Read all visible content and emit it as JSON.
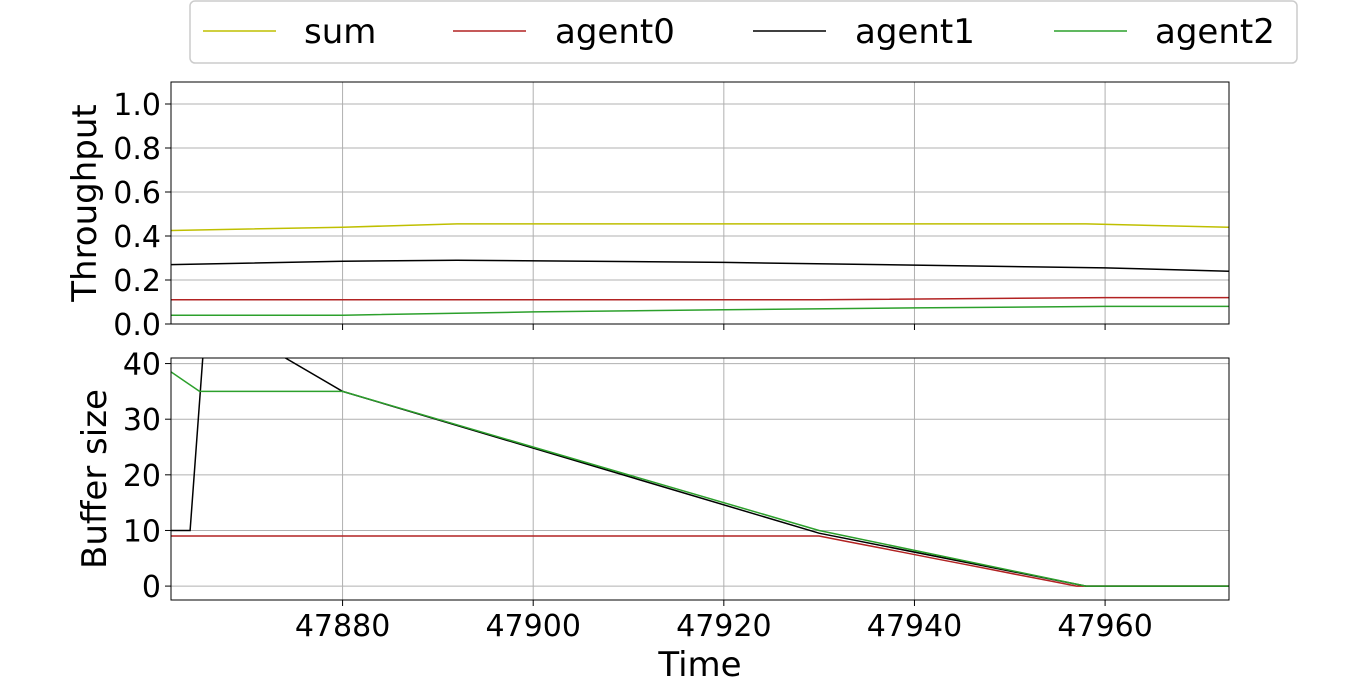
{
  "chart_data": [
    {
      "type": "line",
      "ylabel": "Throughput",
      "xlim": [
        47862,
        47973
      ],
      "ylim": [
        0.0,
        1.1
      ],
      "yticks": [
        0.0,
        0.2,
        0.4,
        0.6,
        0.8,
        1.0
      ],
      "ytick_labels": [
        "0.0",
        "0.2",
        "0.4",
        "0.6",
        "0.8",
        "1.0"
      ],
      "xticks": [
        47880,
        47900,
        47920,
        47940,
        47960
      ],
      "grid": true,
      "series": [
        {
          "name": "sum",
          "color": "#bfbf00",
          "x": [
            47862,
            47880,
            47892,
            47958,
            47973
          ],
          "y": [
            0.425,
            0.44,
            0.455,
            0.455,
            0.44
          ]
        },
        {
          "name": "agent0",
          "color": "#b22222",
          "x": [
            47862,
            47930,
            47960,
            47973
          ],
          "y": [
            0.11,
            0.11,
            0.12,
            0.12
          ]
        },
        {
          "name": "agent1",
          "color": "#000000",
          "x": [
            47862,
            47880,
            47892,
            47920,
            47960,
            47973
          ],
          "y": [
            0.27,
            0.285,
            0.29,
            0.28,
            0.255,
            0.24
          ]
        },
        {
          "name": "agent2",
          "color": "#2ca02c",
          "x": [
            47862,
            47880,
            47900,
            47920,
            47940,
            47960,
            47973
          ],
          "y": [
            0.04,
            0.04,
            0.055,
            0.065,
            0.073,
            0.08,
            0.08
          ]
        }
      ]
    },
    {
      "type": "line",
      "ylabel": "Buffer size",
      "xlabel": "Time",
      "xlim": [
        47862,
        47973
      ],
      "ylim": [
        -2.5,
        41
      ],
      "yticks": [
        0,
        10,
        20,
        30,
        40
      ],
      "ytick_labels": [
        "0",
        "10",
        "20",
        "30",
        "40"
      ],
      "xticks": [
        47880,
        47900,
        47920,
        47940,
        47960
      ],
      "xtick_labels": [
        "47880",
        "47900",
        "47920",
        "47940",
        "47960"
      ],
      "grid": true,
      "series": [
        {
          "name": "agent0",
          "color": "#b22222",
          "x": [
            47862,
            47930,
            47933,
            47936,
            47939,
            47942,
            47945,
            47948,
            47951,
            47954,
            47957,
            47973
          ],
          "y": [
            9,
            9,
            8,
            7,
            6,
            5,
            4,
            3,
            2,
            1,
            0,
            0
          ]
        },
        {
          "name": "agent1",
          "color": "#000000",
          "x": [
            47862,
            47864,
            47867,
            47874,
            47880,
            47930,
            47958,
            47973
          ],
          "y": [
            10,
            10,
            80,
            41,
            35,
            9.5,
            0,
            0
          ]
        },
        {
          "name": "agent2",
          "color": "#2ca02c",
          "x": [
            47862,
            47865,
            47880,
            47930,
            47958,
            47973
          ],
          "y": [
            38.5,
            35,
            35,
            10,
            0,
            0
          ]
        }
      ]
    }
  ],
  "legend": {
    "placement": "top-center",
    "items": [
      {
        "label": "sum",
        "color": "#bfbf00"
      },
      {
        "label": "agent0",
        "color": "#b22222"
      },
      {
        "label": "agent1",
        "color": "#000000"
      },
      {
        "label": "agent2",
        "color": "#2ca02c"
      }
    ]
  }
}
